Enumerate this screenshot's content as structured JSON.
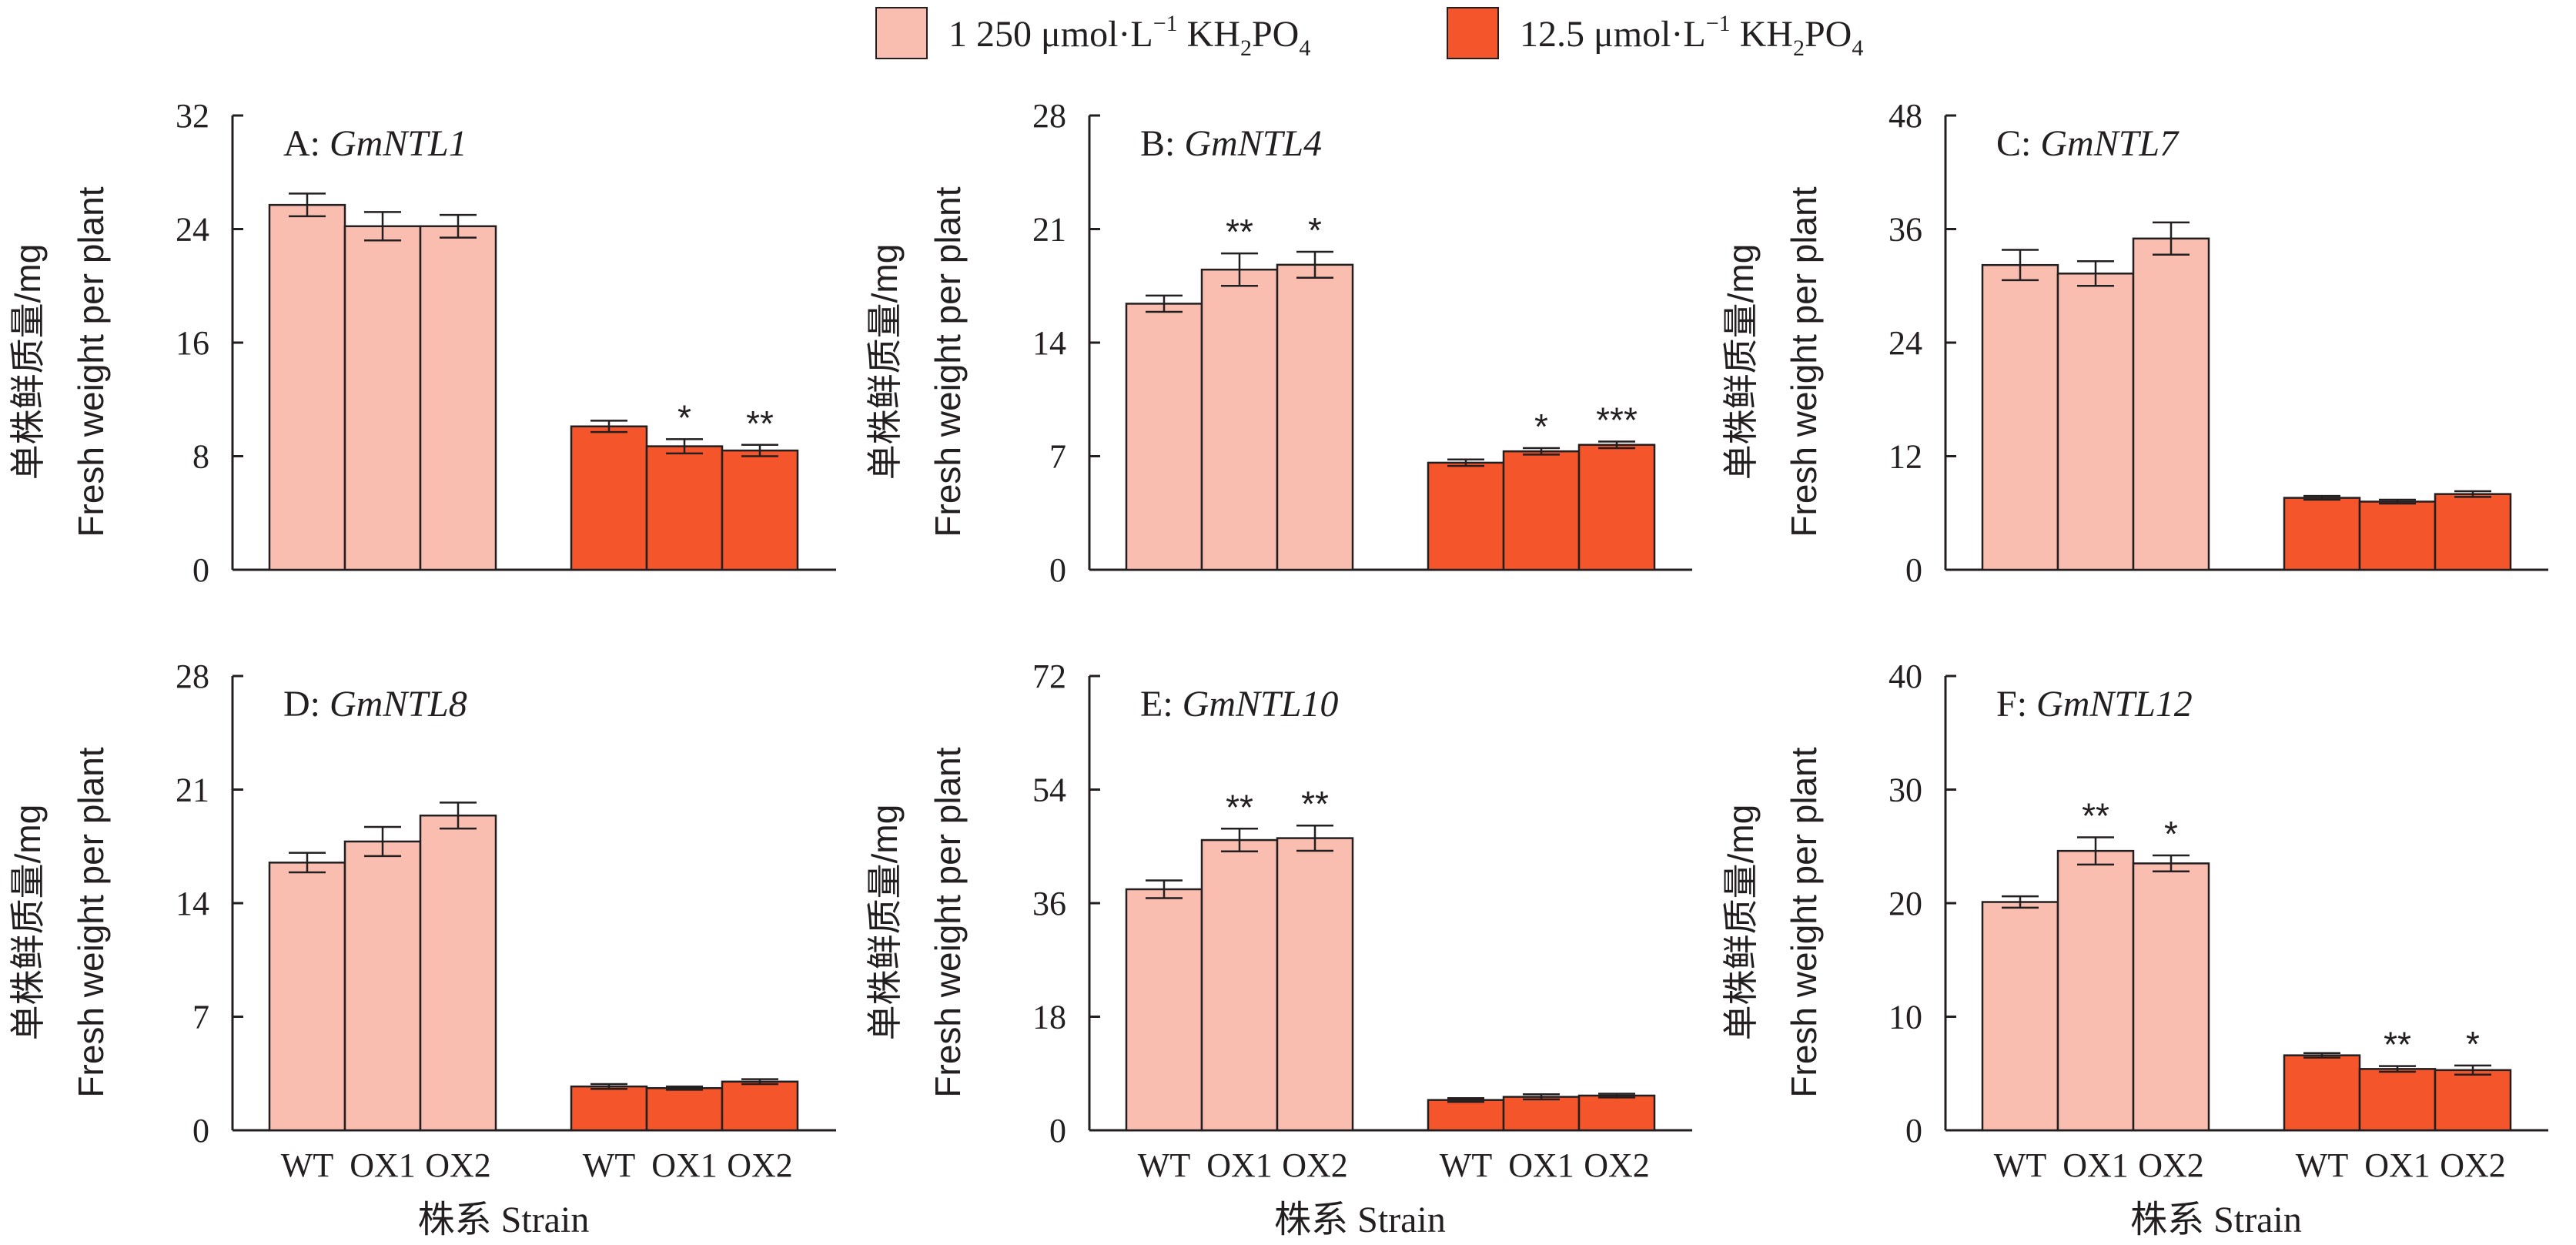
{
  "colors": {
    "treatment_high": "#f9beaf",
    "treatment_low": "#f5552b",
    "axis": "#231f20"
  },
  "legend": {
    "items": [
      {
        "prefix": "1 250 μmol·L",
        "sup": "−1",
        "mid": " KH",
        "sub1": "2",
        "mid2": "PO",
        "sub2": "4"
      },
      {
        "prefix": "12.5 μmol·L",
        "sup": "−1",
        "mid": " KH",
        "sub1": "2",
        "mid2": "PO",
        "sub2": "4"
      }
    ]
  },
  "chart_data": [
    {
      "type": "bar",
      "panel": "A",
      "gene": "GmNTL1",
      "ylabel_cn": "单株鲜质量/mg",
      "ylabel_en": "Fresh weight per plant",
      "xlabel": "株系 Strain",
      "ylim": [
        0,
        32
      ],
      "yticks": [
        "0",
        "8",
        "16",
        "24",
        "32"
      ],
      "categories": [
        "WT",
        "OX1",
        "OX2"
      ],
      "series": [
        {
          "values": [
            25.7,
            24.2,
            24.2
          ],
          "errors": [
            0.8,
            1.0,
            0.8
          ],
          "sig": [
            "",
            "",
            ""
          ]
        },
        {
          "values": [
            10.1,
            8.7,
            8.4
          ],
          "errors": [
            0.4,
            0.5,
            0.4
          ],
          "sig": [
            "",
            "*",
            "**"
          ]
        }
      ]
    },
    {
      "type": "bar",
      "panel": "B",
      "gene": "GmNTL4",
      "ylabel_cn": "单株鲜质量/mg",
      "ylabel_en": "Fresh weight per plant",
      "xlabel": "株系 Strain",
      "ylim": [
        0,
        28
      ],
      "yticks": [
        "0",
        "7",
        "14",
        "21",
        "28"
      ],
      "categories": [
        "WT",
        "OX1",
        "OX2"
      ],
      "series": [
        {
          "values": [
            16.4,
            18.5,
            18.8
          ],
          "errors": [
            0.5,
            1.0,
            0.8
          ],
          "sig": [
            "",
            "**",
            "*"
          ]
        },
        {
          "values": [
            6.6,
            7.3,
            7.7
          ],
          "errors": [
            0.2,
            0.2,
            0.2
          ],
          "sig": [
            "",
            "*",
            "***"
          ]
        }
      ]
    },
    {
      "type": "bar",
      "panel": "C",
      "gene": "GmNTL7",
      "ylabel_cn": "单株鲜质量/mg",
      "ylabel_en": "Fresh weight per plant",
      "xlabel": "株系 Strain",
      "ylim": [
        0,
        48
      ],
      "yticks": [
        "0",
        "12",
        "24",
        "36",
        "48"
      ],
      "categories": [
        "WT",
        "OX1",
        "OX2"
      ],
      "series": [
        {
          "values": [
            32.2,
            31.3,
            35.0
          ],
          "errors": [
            1.6,
            1.3,
            1.7
          ],
          "sig": [
            "",
            "",
            ""
          ]
        },
        {
          "values": [
            7.6,
            7.2,
            8.0
          ],
          "errors": [
            0.2,
            0.2,
            0.3
          ],
          "sig": [
            "",
            "",
            ""
          ]
        }
      ]
    },
    {
      "type": "bar",
      "panel": "D",
      "gene": "GmNTL8",
      "ylabel_cn": "单株鲜质量/mg",
      "ylabel_en": "Fresh weight per plant",
      "xlabel": "株系 Strain",
      "ylim": [
        0,
        28
      ],
      "yticks": [
        "0",
        "7",
        "14",
        "21",
        "28"
      ],
      "categories": [
        "WT",
        "OX1",
        "OX2"
      ],
      "series": [
        {
          "values": [
            16.5,
            17.8,
            19.4
          ],
          "errors": [
            0.6,
            0.9,
            0.8
          ],
          "sig": [
            "",
            "",
            ""
          ]
        },
        {
          "values": [
            2.7,
            2.6,
            3.0
          ],
          "errors": [
            0.15,
            0.1,
            0.15
          ],
          "sig": [
            "",
            "",
            ""
          ]
        }
      ]
    },
    {
      "type": "bar",
      "panel": "E",
      "gene": "GmNTL10",
      "ylabel_cn": "单株鲜质量/mg",
      "ylabel_en": "Fresh weight per plant",
      "xlabel": "株系 Strain",
      "ylim": [
        0,
        72
      ],
      "yticks": [
        "0",
        "18",
        "36",
        "54",
        "72"
      ],
      "categories": [
        "WT",
        "OX1",
        "OX2"
      ],
      "series": [
        {
          "values": [
            38.2,
            46.0,
            46.3
          ],
          "errors": [
            1.4,
            1.8,
            2.0
          ],
          "sig": [
            "",
            "**",
            "**"
          ]
        },
        {
          "values": [
            4.8,
            5.3,
            5.5
          ],
          "errors": [
            0.3,
            0.4,
            0.3
          ],
          "sig": [
            "",
            "",
            ""
          ]
        }
      ]
    },
    {
      "type": "bar",
      "panel": "F",
      "gene": "GmNTL12",
      "ylabel_cn": "单株鲜质量/mg",
      "ylabel_en": "Fresh weight per plant",
      "xlabel": "株系 Strain",
      "ylim": [
        0,
        40
      ],
      "yticks": [
        "0",
        "10",
        "20",
        "30",
        "40"
      ],
      "categories": [
        "WT",
        "OX1",
        "OX2"
      ],
      "series": [
        {
          "values": [
            20.1,
            24.6,
            23.5
          ],
          "errors": [
            0.5,
            1.2,
            0.7
          ],
          "sig": [
            "",
            "**",
            "*"
          ]
        },
        {
          "values": [
            6.6,
            5.4,
            5.3
          ],
          "errors": [
            0.2,
            0.25,
            0.4
          ],
          "sig": [
            "",
            "**",
            "*"
          ]
        }
      ]
    }
  ]
}
